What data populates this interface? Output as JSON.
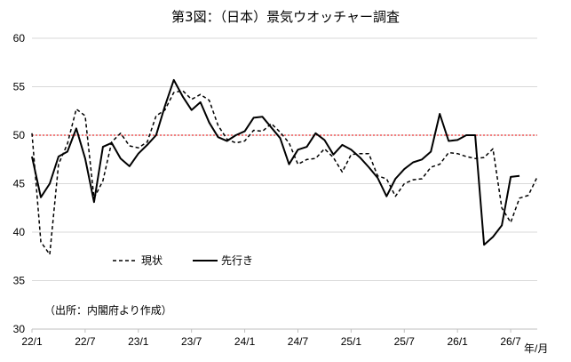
{
  "chart_data": {
    "type": "line",
    "title": "第3図：（日本）景気ウオッチャー調査",
    "xlabel": "年/月",
    "ylabel": "",
    "ylim": [
      30,
      60
    ],
    "yticks": [
      30,
      35,
      40,
      45,
      50,
      55,
      60
    ],
    "xtick_labels": [
      "22/1",
      "22/7",
      "23/1",
      "23/7",
      "24/1",
      "24/7",
      "25/1",
      "25/7",
      "26/1",
      "26/7"
    ],
    "grid": "horizontal",
    "reference_line": {
      "value": 50,
      "color": "#e60000",
      "style": "dotted"
    },
    "legend_position": "lower-left",
    "note": "（出所：内閣府より作成）",
    "series": [
      {
        "name": "現状",
        "style": "dashed",
        "color": "#000000",
        "x_start_index": 0,
        "values": [
          50.2,
          39.0,
          37.7,
          47.0,
          49.1,
          52.7,
          52.0,
          43.5,
          45.3,
          49.3,
          50.2,
          48.9,
          48.7,
          49.3,
          52.0,
          52.6,
          54.4,
          54.6,
          53.7,
          54.2,
          53.6,
          51.0,
          49.6,
          49.2,
          49.4,
          50.5,
          50.4,
          51.2,
          50.3,
          49.2,
          47.0,
          47.5,
          47.6,
          48.6,
          47.7,
          46.2,
          48.0,
          48.1,
          48.1,
          45.8,
          45.5,
          43.7,
          45.0,
          45.4,
          45.5,
          46.7,
          47.0,
          48.2,
          48.1,
          47.8,
          47.6,
          47.7,
          48.6,
          42.5,
          41.0,
          43.5,
          43.8,
          45.7
        ]
      },
      {
        "name": "先行き",
        "style": "solid",
        "color": "#000000",
        "x_start_index": 0,
        "values": [
          47.8,
          43.6,
          45.0,
          47.8,
          48.3,
          50.7,
          47.6,
          43.1,
          48.8,
          49.2,
          47.6,
          46.8,
          48.1,
          49.0,
          50.0,
          53.0,
          55.7,
          54.0,
          52.6,
          53.4,
          51.3,
          49.8,
          49.4,
          50.0,
          50.4,
          51.8,
          51.9,
          50.8,
          49.7,
          47.0,
          48.5,
          48.8,
          50.2,
          49.5,
          48.0,
          49.0,
          48.5,
          47.7,
          46.7,
          45.6,
          43.7,
          45.5,
          46.5,
          47.2,
          47.5,
          48.3,
          52.2,
          49.4,
          49.5,
          50.0,
          50.0,
          38.7,
          39.5,
          40.7,
          45.7,
          45.8
        ]
      }
    ]
  }
}
